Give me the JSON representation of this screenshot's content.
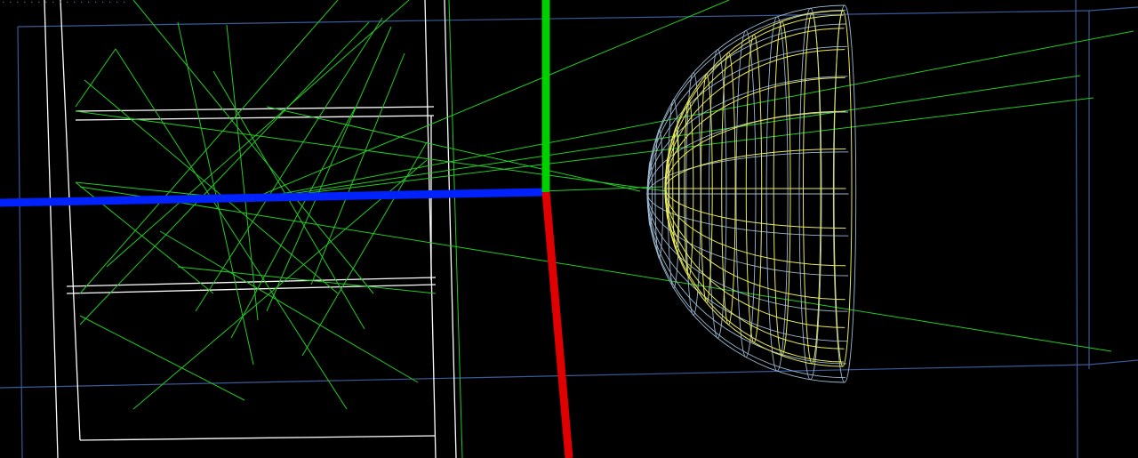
{
  "viewer": {
    "overlay_text": "· · · · · · · · · · · · ·  · · · · ·",
    "background": "#000000"
  },
  "colors": {
    "axis_x": "#e00000",
    "axis_y": "#00d000",
    "axis_z": "#0022ff",
    "trajectories": "#22cc22",
    "detector_box": "#ffffff",
    "world_box": "#3a5a9a",
    "hemisphere_inner": "#e8e85a",
    "hemisphere_outer": "#9ab8d0"
  },
  "icons": {
    "axis_triad": "xyz-axes-icon"
  }
}
